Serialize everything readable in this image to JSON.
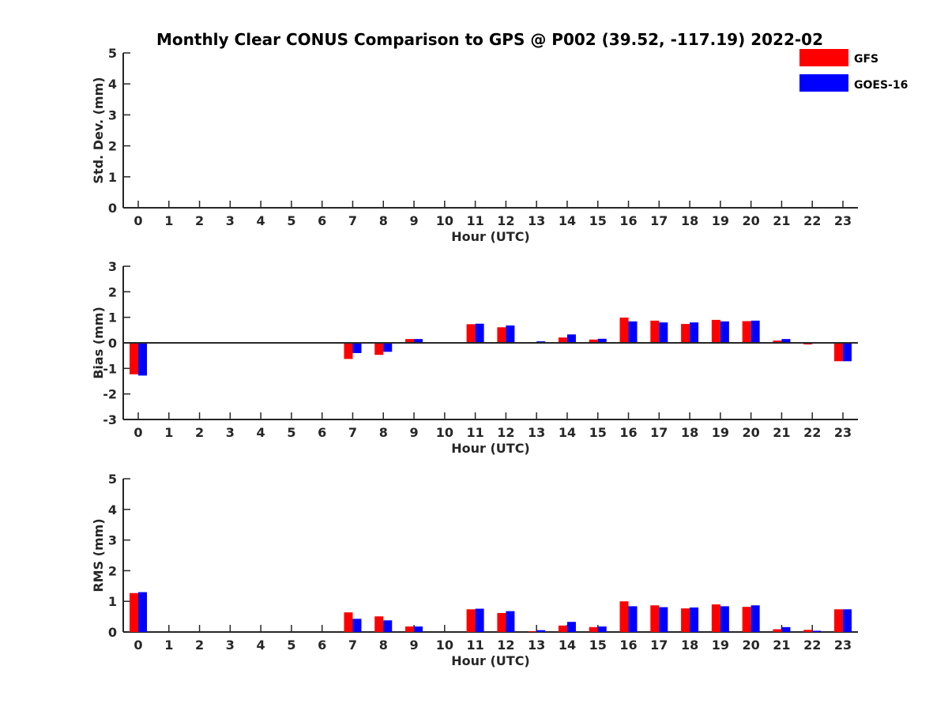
{
  "title": "Monthly Clear CONUS Comparison to GPS @ P002 (39.52, -117.19) 2022-02",
  "legend": [
    {
      "name": "GFS",
      "color": "#ff0000"
    },
    {
      "name": "GOES-16",
      "color": "#0000ff"
    }
  ],
  "chart_data": [
    {
      "type": "bar",
      "xlabel": "Hour (UTC)",
      "ylabel": "Std. Dev. (mm)",
      "ylim": [
        0,
        5
      ],
      "yticks": [
        0,
        1,
        2,
        3,
        4,
        5
      ],
      "categories": [
        "0",
        "1",
        "2",
        "3",
        "4",
        "5",
        "6",
        "7",
        "8",
        "9",
        "10",
        "11",
        "12",
        "13",
        "14",
        "15",
        "16",
        "17",
        "18",
        "19",
        "20",
        "21",
        "22",
        "23"
      ],
      "series": [
        {
          "name": "GFS",
          "values": [
            null,
            null,
            null,
            null,
            null,
            null,
            null,
            null,
            null,
            null,
            null,
            null,
            null,
            null,
            null,
            null,
            null,
            null,
            null,
            null,
            null,
            null,
            null,
            null
          ]
        },
        {
          "name": "GOES-16",
          "values": [
            null,
            null,
            null,
            null,
            null,
            null,
            null,
            null,
            null,
            null,
            null,
            null,
            null,
            null,
            null,
            null,
            null,
            null,
            null,
            null,
            null,
            null,
            null,
            null
          ]
        }
      ],
      "legend": "top-right"
    },
    {
      "type": "bar",
      "xlabel": "Hour (UTC)",
      "ylabel": "Bias (mm)",
      "ylim": [
        -3,
        3
      ],
      "yticks": [
        -3,
        -2,
        -1,
        0,
        1,
        2,
        3
      ],
      "zero_line": true,
      "categories": [
        "0",
        "1",
        "2",
        "3",
        "4",
        "5",
        "6",
        "7",
        "8",
        "9",
        "10",
        "11",
        "12",
        "13",
        "14",
        "15",
        "16",
        "17",
        "18",
        "19",
        "20",
        "21",
        "22",
        "23"
      ],
      "series": [
        {
          "name": "GFS",
          "values": [
            -1.23,
            null,
            null,
            null,
            null,
            null,
            null,
            -0.63,
            -0.47,
            0.15,
            null,
            0.73,
            0.61,
            0.0,
            0.21,
            0.13,
            0.99,
            0.87,
            0.74,
            0.9,
            0.85,
            0.09,
            -0.06,
            -0.72
          ]
        },
        {
          "name": "GOES-16",
          "values": [
            -1.28,
            null,
            null,
            null,
            null,
            null,
            null,
            -0.4,
            -0.35,
            0.15,
            null,
            0.75,
            0.68,
            0.06,
            0.33,
            0.16,
            0.84,
            0.8,
            0.8,
            0.84,
            0.87,
            0.15,
            0.03,
            -0.72
          ]
        }
      ]
    },
    {
      "type": "bar",
      "xlabel": "Hour (UTC)",
      "ylabel": "RMS (mm)",
      "ylim": [
        0,
        5
      ],
      "yticks": [
        0,
        1,
        2,
        3,
        4,
        5
      ],
      "categories": [
        "0",
        "1",
        "2",
        "3",
        "4",
        "5",
        "6",
        "7",
        "8",
        "9",
        "10",
        "11",
        "12",
        "13",
        "14",
        "15",
        "16",
        "17",
        "18",
        "19",
        "20",
        "21",
        "22",
        "23"
      ],
      "series": [
        {
          "name": "GFS",
          "values": [
            1.27,
            null,
            null,
            null,
            null,
            null,
            null,
            0.64,
            0.51,
            0.18,
            null,
            0.74,
            0.62,
            0.02,
            0.21,
            0.16,
            1.0,
            0.87,
            0.77,
            0.9,
            0.82,
            0.09,
            0.07,
            0.74
          ]
        },
        {
          "name": "GOES-16",
          "values": [
            1.3,
            null,
            null,
            null,
            null,
            null,
            null,
            0.43,
            0.38,
            0.18,
            null,
            0.76,
            0.68,
            0.06,
            0.33,
            0.18,
            0.84,
            0.81,
            0.8,
            0.84,
            0.87,
            0.16,
            0.04,
            0.74
          ]
        }
      ]
    }
  ]
}
